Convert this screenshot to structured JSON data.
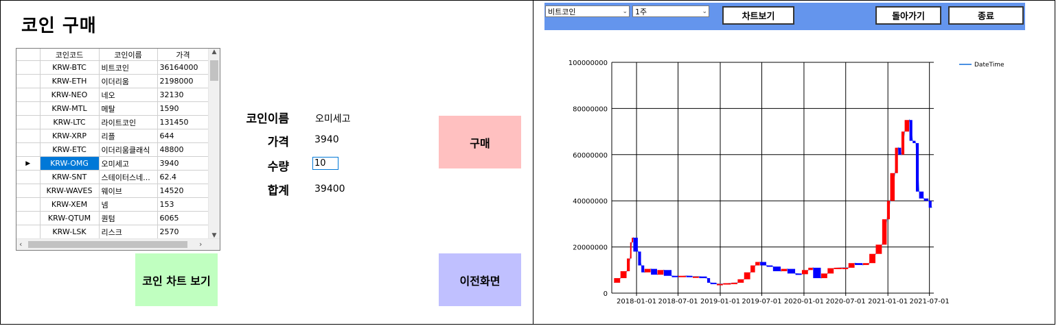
{
  "left": {
    "title": "코인 구매",
    "grid": {
      "headers": [
        "코인코드",
        "코인이름",
        "가격"
      ],
      "rows": [
        {
          "code": "KRW-BTC",
          "name": "비트코인",
          "price": "36164000"
        },
        {
          "code": "KRW-ETH",
          "name": "이더리움",
          "price": "2198000"
        },
        {
          "code": "KRW-NEO",
          "name": "네오",
          "price": "32130"
        },
        {
          "code": "KRW-MTL",
          "name": "메탈",
          "price": "1590"
        },
        {
          "code": "KRW-LTC",
          "name": "라이트코인",
          "price": "131450"
        },
        {
          "code": "KRW-XRP",
          "name": "리플",
          "price": "644"
        },
        {
          "code": "KRW-ETC",
          "name": "이더리움클래식",
          "price": "48800"
        },
        {
          "code": "KRW-OMG",
          "name": "오미세고",
          "price": "3940",
          "selected": true
        },
        {
          "code": "KRW-SNT",
          "name": "스테이터스네...",
          "price": "62.4"
        },
        {
          "code": "KRW-WAVES",
          "name": "웨이브",
          "price": "14520"
        },
        {
          "code": "KRW-XEM",
          "name": "넴",
          "price": "153"
        },
        {
          "code": "KRW-QTUM",
          "name": "퀀텀",
          "price": "6065"
        },
        {
          "code": "KRW-LSK",
          "name": "리스크",
          "price": "2570"
        }
      ]
    },
    "form": {
      "name_label": "코인이름",
      "name_value": "오미세고",
      "price_label": "가격",
      "price_value": "3940",
      "qty_label": "수량",
      "qty_value": "10",
      "total_label": "합계",
      "total_value": "39400"
    },
    "buttons": {
      "buy": "구매",
      "chart": "코인 차트 보기",
      "back": "이전화면"
    },
    "colors": {
      "buy": "#ffc0c0",
      "chart": "#c0ffc0",
      "back": "#c0c0ff",
      "selection": "#0078d7"
    }
  },
  "right": {
    "toolbar": {
      "coin_select": "비트코인",
      "period_select": "1주",
      "chart_button": "차트보기",
      "back_button": "돌아가기",
      "exit_button": "종료",
      "color": "#6495ed"
    },
    "chart_data": {
      "type": "line",
      "legend": "DateTime",
      "legend_position": "top-right",
      "ylim": [
        0,
        100000000
      ],
      "yticks": [
        "0",
        "20000000",
        "40000000",
        "60000000",
        "80000000",
        "100000000"
      ],
      "xticks": [
        "2018-01-01",
        "2018-07-01",
        "2019-01-01",
        "2019-07-01",
        "2020-01-01",
        "2020-07-01",
        "2021-01-01",
        "2021-07-01"
      ],
      "colors": {
        "up": "#ff0000",
        "down": "#0000ff",
        "line": "#4a90e2"
      },
      "series": [
        {
          "x": [
            "2017-09-25",
            "2017-10-23",
            "2017-11-20",
            "2017-12-04",
            "2017-12-11",
            "2017-12-18",
            "2018-01-08",
            "2018-01-22",
            "2018-02-05",
            "2018-03-05",
            "2018-04-02",
            "2018-04-30",
            "2018-06-04",
            "2018-07-02",
            "2018-08-06",
            "2018-09-03",
            "2018-10-01",
            "2018-11-05",
            "2018-11-19",
            "2018-12-17",
            "2019-01-14",
            "2019-02-18",
            "2019-03-18",
            "2019-04-15",
            "2019-05-13",
            "2019-06-03",
            "2019-06-24",
            "2019-07-22",
            "2019-08-19",
            "2019-09-23",
            "2019-10-21",
            "2019-11-25",
            "2019-12-23",
            "2020-01-20",
            "2020-02-10",
            "2020-03-16",
            "2020-04-13",
            "2020-05-11",
            "2020-06-15",
            "2020-07-13",
            "2020-08-10",
            "2020-09-14",
            "2020-10-12",
            "2020-11-09",
            "2020-12-07",
            "2020-12-28",
            "2021-01-11",
            "2021-02-01",
            "2021-02-15",
            "2021-03-01",
            "2021-03-15",
            "2021-04-05",
            "2021-04-19",
            "2021-05-03",
            "2021-05-17",
            "2021-06-07",
            "2021-06-28",
            "2021-07-12"
          ],
          "values": [
            4500000,
            6500000,
            9500000,
            15000000,
            22000000,
            24000000,
            18000000,
            12000000,
            9000000,
            10500000,
            8000000,
            10000000,
            7500000,
            7000000,
            7500000,
            7200000,
            7200000,
            6500000,
            4500000,
            4000000,
            4000000,
            4300000,
            4500000,
            6000000,
            9000000,
            12000000,
            13500000,
            12000000,
            11500000,
            9500000,
            10500000,
            8500000,
            8200000,
            10000000,
            11000000,
            6500000,
            8500000,
            10800000,
            11000000,
            11000000,
            13000000,
            12200000,
            13000000,
            17000000,
            21000000,
            32000000,
            40000000,
            52000000,
            63000000,
            60000000,
            70000000,
            75000000,
            66000000,
            65000000,
            44000000,
            41000000,
            40000000,
            37000000
          ]
        }
      ]
    }
  }
}
